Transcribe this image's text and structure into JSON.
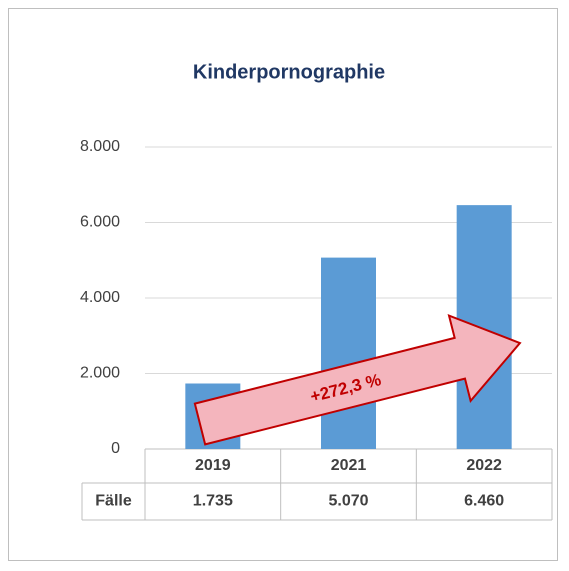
{
  "chart_data": {
    "type": "bar",
    "title": "Kinderpornographie",
    "categories": [
      "2019",
      "2021",
      "2022"
    ],
    "series": [
      {
        "name": "Fälle",
        "color": "#5b9bd5",
        "values": [
          1735,
          5070,
          6460
        ],
        "value_labels": [
          "1.735",
          "5.070",
          "6.460"
        ]
      }
    ],
    "ylim": [
      0,
      8000
    ],
    "yticks": [
      0,
      {
        "value": 2000,
        "label": "2.000"
      },
      {
        "value": 4000,
        "label": "4.000"
      },
      {
        "value": 6000,
        "label": "6.000"
      },
      {
        "value": 8000,
        "label": "8.000"
      }
    ],
    "grid": true,
    "annotation": "+272,3 %"
  }
}
